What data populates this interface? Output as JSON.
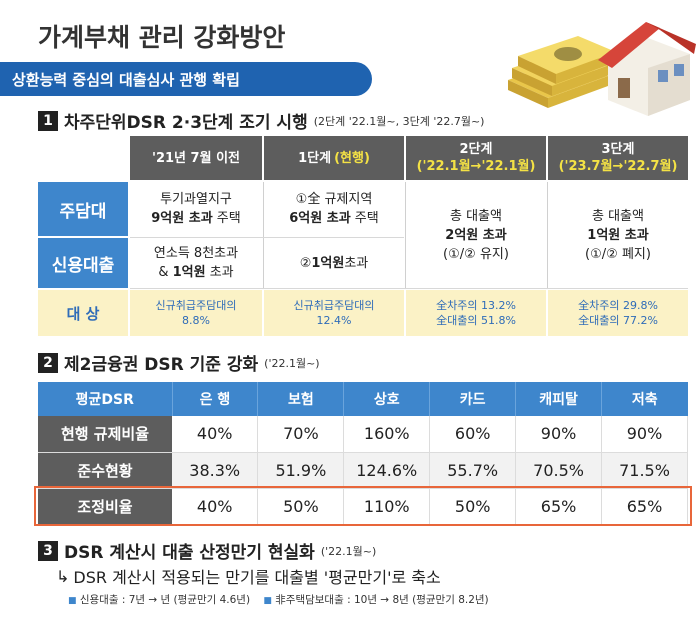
{
  "title": "가계부채 관리 강화방안",
  "subtitle": "상환능력 중심의 대출심사 관행 확립",
  "section1": {
    "number": "1",
    "heading": "차주단위DSR 2·3단계 조기 시행",
    "note": "(2단계 '22.1월~, 3단계 '22.7월~)",
    "columns": [
      {
        "line1": "'21년 7월 이전",
        "line2": ""
      },
      {
        "line1": "1단계",
        "line2": "(현행)"
      },
      {
        "line1": "2단계",
        "line2": "('22.1월→'22.1월)"
      },
      {
        "line1": "3단계",
        "line2": "('23.7월→'22.7월)"
      }
    ],
    "rows": {
      "jutamdae_label": "주담대",
      "credit_label": "신용대출",
      "target_label": "대 상"
    },
    "cells": {
      "before_jutamdae_1": "투기과열지구",
      "before_jutamdae_2": "9억원 초과",
      "before_jutamdae_3": " 주택",
      "before_credit_1": "연소득 8천초과",
      "before_credit_2": "& ",
      "before_credit_3": "1억원",
      "before_credit_4": " 초과",
      "stage1_jutamdae_1": "①全 규제지역",
      "stage1_jutamdae_2": "6억원 초과",
      "stage1_jutamdae_3": " 주택",
      "stage1_credit_1": "②",
      "stage1_credit_2": "1억원",
      "stage1_credit_3": " 초과",
      "stage2_1": "총 대출액",
      "stage2_2": "2억원 초과",
      "stage2_3": "(①/② 유지)",
      "stage3_1": "총 대출액",
      "stage3_2": "1억원 초과",
      "stage3_3": "(①/② 폐지)"
    },
    "targets": [
      {
        "line1": "신규취급주담대의",
        "line2": "8.8%"
      },
      {
        "line1": "신규취급주담대의",
        "line2": "12.4%"
      },
      {
        "line1": "全차주의 13.2%",
        "line2": "全대출의 51.8%"
      },
      {
        "line1": "全차주의 29.8%",
        "line2": "全대출의 77.2%"
      }
    ]
  },
  "section2": {
    "number": "2",
    "heading": "제2금융권 DSR 기준 강화",
    "note": "('22.1월~)",
    "header_label": "평균DSR",
    "columns": [
      "은 행",
      "보험",
      "상호",
      "카드",
      "캐피탈",
      "저축"
    ],
    "rows": [
      {
        "label": "현행 규제비율",
        "values": [
          "40%",
          "70%",
          "160%",
          "60%",
          "90%",
          "90%"
        ]
      },
      {
        "label": "준수현황",
        "values": [
          "38.3%",
          "51.9%",
          "124.6%",
          "55.7%",
          "70.5%",
          "71.5%"
        ]
      },
      {
        "label": "조정비율",
        "values": [
          "40%",
          "50%",
          "110%",
          "50%",
          "65%",
          "65%"
        ]
      }
    ]
  },
  "section3": {
    "number": "3",
    "heading": "DSR 계산시 대출 산정만기 현실화",
    "note": "('22.1월~)",
    "line": "DSR 계산시 적용되는 만기를 대출별 '평균만기'로 축소",
    "note1": "신용대출 : 7년 → 년 (평균만기 4.6년)",
    "note2": "非주택담보대출 : 10년 → 8년 (평균만기 8.2년)"
  },
  "colors": {
    "blue": "#3e86cc",
    "dark_blue": "#1f63b0",
    "gray": "#5d5d5d",
    "yellow_bg": "#fbf2c6",
    "highlight": "#e8663a"
  }
}
